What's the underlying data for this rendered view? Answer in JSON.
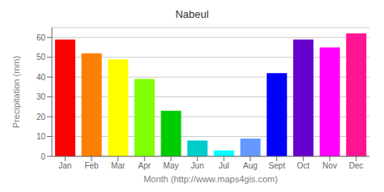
{
  "chart_data": {
    "type": "bar",
    "title": "Nabeul",
    "xlabel": "Month (http://www.maps4gis.com)",
    "ylabel": "Precipitation (mm)",
    "categories": [
      "Jan",
      "Feb",
      "Mar",
      "Apr",
      "May",
      "Jun",
      "Jul",
      "Aug",
      "Sept",
      "Oct",
      "Nov",
      "Dec"
    ],
    "values": [
      59,
      52,
      49,
      39,
      23,
      8,
      3,
      9,
      42,
      59,
      55,
      62
    ],
    "colors": [
      "#FF0000",
      "#FF8000",
      "#FFFF00",
      "#80FF00",
      "#00CC00",
      "#00CCCC",
      "#00FFFF",
      "#6699FF",
      "#0000FF",
      "#6600CC",
      "#FF00FF",
      "#FF1493"
    ],
    "ylim": [
      0,
      65
    ],
    "yticks": [
      0,
      10,
      20,
      30,
      40,
      50,
      60
    ],
    "grid": true
  }
}
